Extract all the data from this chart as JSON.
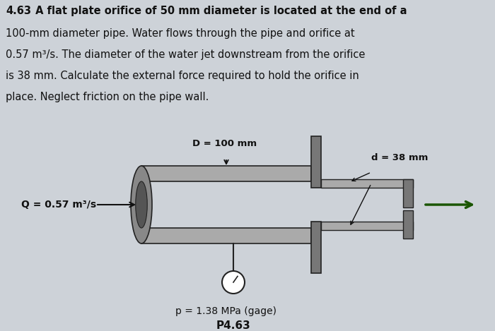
{
  "bg_color": "#cdd2d8",
  "pipe_fill": "#aaaaaa",
  "pipe_edge": "#222222",
  "orifice_fill": "#777777",
  "arrow_color": "#1a5500",
  "dim_arrow_color": "#111111",
  "text_color": "#111111",
  "label_D": "D = 100 mm",
  "label_d": "d = 38 mm",
  "label_Q": "Q = 0.57 m³/s",
  "label_p": "p = 1.38 MPa (gage)",
  "label_P": "P4.63",
  "title_line1": "4.63 A flat plate orifice of 50 mm diameter is located at the end of a",
  "title_line2": "100-mm diameter pipe. Water flows through the pipe and orifice at",
  "title_line3": "0.57 m³/s. The diameter of the water jet downstream from the orifice",
  "title_line4": "is 38 mm. Calculate the external force required to hold the orifice in",
  "title_line5": "place. Neglect friction on the pipe wall.",
  "figsize": [
    7.0,
    4.69
  ],
  "dpi": 100
}
